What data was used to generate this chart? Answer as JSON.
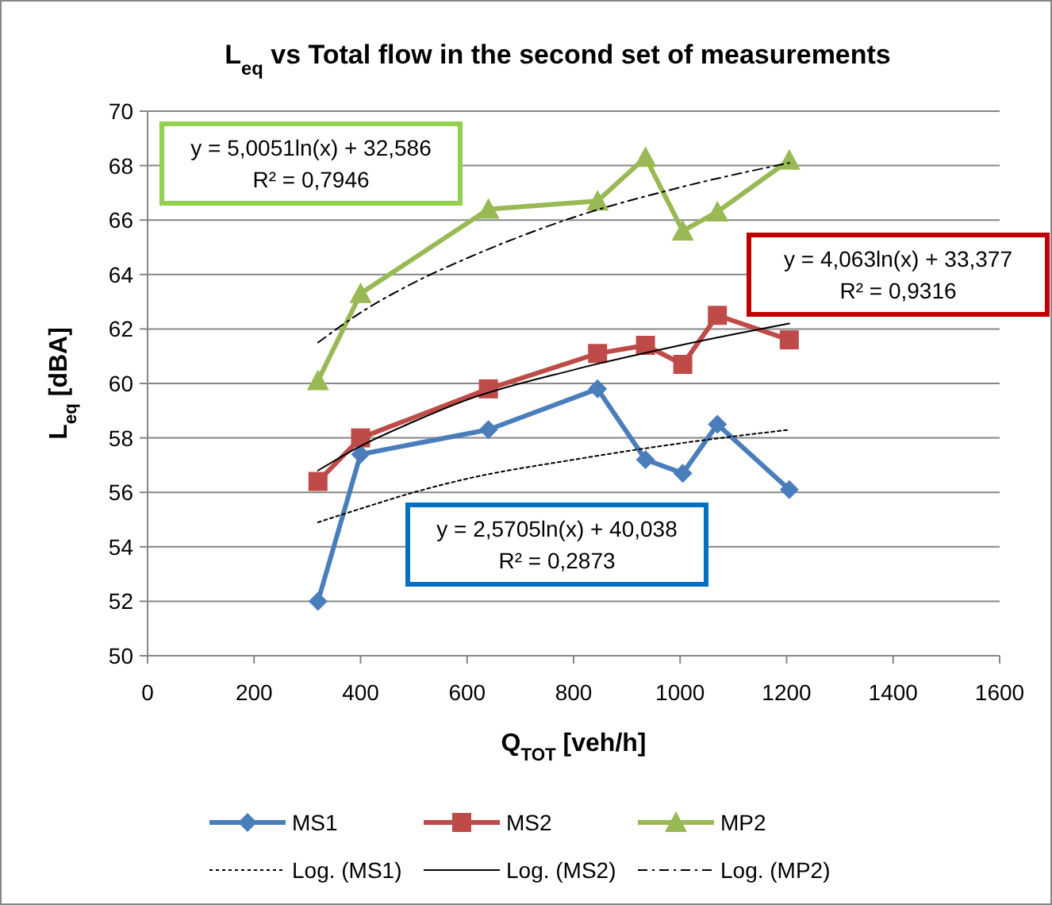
{
  "chart_data": {
    "type": "line",
    "title": "L$_{eq}$ vs Total flow in the second set of measurements",
    "xlabel": "Q$_{TOT}$  [veh/h]",
    "ylabel": "L$_{eq}$  [dBA]",
    "x": [
      320,
      400,
      640,
      845,
      935,
      1005,
      1070,
      1205
    ],
    "series": [
      {
        "name": "MS1",
        "color": "#4a7ebb",
        "marker": "diamond",
        "values": [
          52.0,
          57.4,
          58.3,
          59.8,
          57.2,
          56.7,
          58.5,
          56.1
        ]
      },
      {
        "name": "MS2",
        "color": "#be4b48",
        "marker": "square",
        "values": [
          56.4,
          58.0,
          59.8,
          61.1,
          61.4,
          60.7,
          62.5,
          61.6
        ]
      },
      {
        "name": "MP2",
        "color": "#98b954",
        "marker": "triangle",
        "values": [
          60.1,
          63.3,
          66.4,
          66.7,
          68.3,
          65.6,
          66.3,
          68.2
        ]
      },
      {
        "name": "Log. (MS1)",
        "type": "line",
        "color": "#000000",
        "marker": "none",
        "line_style": "dotted",
        "x": [
          320,
          400,
          500,
          600,
          800,
          1000,
          1205
        ],
        "values": [
          54.9,
          55.4,
          56.0,
          56.5,
          57.2,
          57.8,
          58.3
        ]
      },
      {
        "name": "Log. (MS2)",
        "type": "line",
        "color": "#000000",
        "marker": "none",
        "line_style": "solid",
        "x": [
          320,
          400,
          500,
          600,
          800,
          1000,
          1205
        ],
        "values": [
          56.8,
          57.7,
          58.6,
          59.4,
          60.5,
          61.4,
          62.2
        ]
      },
      {
        "name": "Log. (MP2)",
        "type": "line",
        "color": "#000000",
        "marker": "none",
        "line_style": "dashed",
        "x": [
          320,
          400,
          500,
          600,
          800,
          1000,
          1205
        ],
        "values": [
          61.5,
          62.6,
          63.7,
          64.6,
          66.1,
          67.2,
          68.1
        ]
      }
    ],
    "annotations": [
      "y = 5,0051ln(x) + 32,586\nR² = 0,7946",
      "y = 4,063ln(x) + 33,377\nR² = 0,9316",
      "y = 2,5705ln(x) + 40,038\nR² = 0,2873"
    ],
    "xlim": [
      0,
      1600
    ],
    "xticks": [
      0,
      200,
      400,
      600,
      800,
      1000,
      1200,
      1400,
      1600
    ],
    "ylim": [
      50,
      70
    ],
    "yticks": [
      50,
      52,
      54,
      56,
      58,
      60,
      62,
      64,
      66,
      68,
      70
    ],
    "grid": "y",
    "legend": "bottom"
  }
}
